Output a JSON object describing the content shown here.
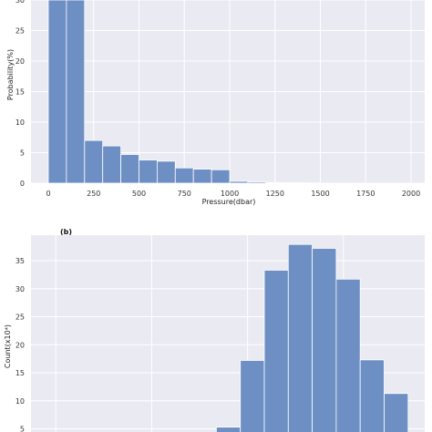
{
  "colors": {
    "panel_bg": "#eaeaf2",
    "grid": "#ffffff",
    "bar": "#6e8fc4",
    "bar_edge": "#ffffff"
  },
  "chart_data": [
    {
      "type": "bar",
      "panel_label": "",
      "xlabel": "Pressure(dbar)",
      "ylabel": "Probability(%)",
      "xlim": [
        -100,
        2080
      ],
      "ylim": [
        0,
        30
      ],
      "xticks": [
        0,
        250,
        500,
        750,
        1000,
        1250,
        1500,
        1750,
        2000
      ],
      "yticks": [
        0,
        5,
        10,
        15,
        20,
        25,
        30
      ],
      "bin_width": 100,
      "bins": [
        {
          "x0": 0,
          "x1": 100,
          "value": 30
        },
        {
          "x0": 100,
          "x1": 200,
          "value": 30
        },
        {
          "x0": 200,
          "x1": 300,
          "value": 7.0
        },
        {
          "x0": 300,
          "x1": 400,
          "value": 6.1
        },
        {
          "x0": 400,
          "x1": 500,
          "value": 4.7
        },
        {
          "x0": 500,
          "x1": 600,
          "value": 3.8
        },
        {
          "x0": 600,
          "x1": 700,
          "value": 3.6
        },
        {
          "x0": 700,
          "x1": 800,
          "value": 2.5
        },
        {
          "x0": 800,
          "x1": 900,
          "value": 2.3
        },
        {
          "x0": 900,
          "x1": 1000,
          "value": 2.2
        },
        {
          "x0": 1000,
          "x1": 1100,
          "value": 0.3
        },
        {
          "x0": 1100,
          "x1": 1200,
          "value": 0.2
        },
        {
          "x0": 1200,
          "x1": 1300,
          "value": 0.1
        },
        {
          "x0": 1300,
          "x1": 1400,
          "value": 0.1
        },
        {
          "x0": 1400,
          "x1": 1500,
          "value": 0.05
        }
      ],
      "grid": true
    },
    {
      "type": "bar",
      "panel_label": "(b)",
      "xlabel": "",
      "ylabel": "Count(x10⁴)",
      "xlim": [
        0,
        21
      ],
      "ylim": [
        5,
        40
      ],
      "yticks": [
        5,
        10,
        15,
        20,
        25,
        30,
        35
      ],
      "xgrid": [
        1.3,
        5.3,
        9.3,
        13.3,
        17.3
      ],
      "bins": [
        {
          "x0": 8,
          "x1": 9,
          "value": 5.3
        },
        {
          "x0": 9,
          "x1": 10,
          "value": 17.2
        },
        {
          "x0": 10,
          "x1": 11,
          "value": 33.3
        },
        {
          "x0": 11,
          "x1": 12,
          "value": 37.9
        },
        {
          "x0": 12,
          "x1": 13,
          "value": 37.2
        },
        {
          "x0": 13,
          "x1": 14,
          "value": 31.7
        },
        {
          "x0": 14,
          "x1": 15,
          "value": 17.3
        },
        {
          "x0": 15,
          "x1": 16,
          "value": 11.3
        }
      ],
      "grid": true
    }
  ]
}
